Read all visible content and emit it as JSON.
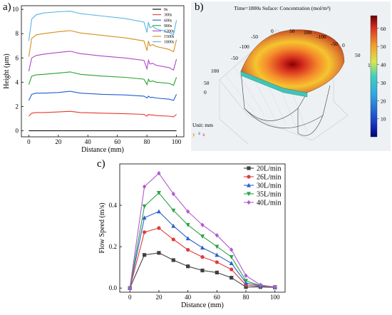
{
  "panels": {
    "a": "a)",
    "b": "b)",
    "c": "c)"
  },
  "chart_data": [
    {
      "type": "line",
      "panel": "a",
      "xlabel": "Distance (mm)",
      "ylabel": "Height (μm)",
      "xlim": [
        -5,
        105
      ],
      "ylim": [
        -0.5,
        10.3
      ],
      "xticks": [
        0,
        20,
        40,
        60,
        80,
        100
      ],
      "yticks": [
        0,
        2,
        4,
        6,
        8,
        10
      ],
      "legend_position": "top-right",
      "x": [
        0,
        2,
        5,
        10,
        20,
        28,
        35,
        50,
        65,
        78,
        80,
        81,
        82,
        84,
        86,
        95,
        98,
        100
      ],
      "series": [
        {
          "name": "0s",
          "color": "#000000",
          "values": [
            0,
            0,
            0,
            0,
            0,
            0,
            0,
            0,
            0,
            0,
            0,
            0,
            0,
            0,
            0,
            0,
            0,
            0
          ]
        },
        {
          "name": "300s",
          "color": "#e8392b",
          "values": [
            1.2,
            1.45,
            1.5,
            1.5,
            1.55,
            1.6,
            1.5,
            1.45,
            1.4,
            1.35,
            1.2,
            1.35,
            1.3,
            1.3,
            1.25,
            1.2,
            1.15,
            1.35
          ]
        },
        {
          "name": "600s",
          "color": "#1f5fd0",
          "values": [
            2.5,
            3.0,
            3.1,
            3.1,
            3.15,
            3.25,
            3.1,
            3.0,
            2.95,
            2.85,
            2.7,
            2.85,
            2.75,
            2.75,
            2.7,
            2.6,
            2.5,
            3.0
          ]
        },
        {
          "name": "900s",
          "color": "#2ca02c",
          "values": [
            3.8,
            4.5,
            4.6,
            4.65,
            4.75,
            4.85,
            4.65,
            4.5,
            4.4,
            4.25,
            3.8,
            4.25,
            4.05,
            4.1,
            4.0,
            3.9,
            3.75,
            4.4
          ]
        },
        {
          "name": "1200s",
          "color": "#b044c8",
          "values": [
            4.9,
            6.0,
            6.2,
            6.3,
            6.45,
            6.55,
            6.35,
            6.15,
            6.0,
            5.8,
            5.1,
            5.8,
            5.5,
            5.55,
            5.4,
            5.2,
            5.0,
            5.9
          ]
        },
        {
          "name": "1500s",
          "color": "#d4901a",
          "values": [
            6.1,
            7.6,
            7.9,
            8.0,
            8.15,
            8.25,
            8.05,
            7.85,
            7.65,
            7.4,
            6.6,
            7.4,
            7.0,
            7.1,
            6.95,
            6.7,
            6.5,
            7.5
          ]
        },
        {
          "name": "1800s",
          "color": "#5ab4e6",
          "values": [
            7.4,
            9.2,
            9.55,
            9.7,
            9.8,
            9.85,
            9.65,
            9.45,
            9.25,
            8.95,
            8.1,
            8.95,
            8.5,
            8.6,
            8.4,
            8.1,
            7.9,
            9.1
          ]
        }
      ]
    },
    {
      "type": "other",
      "panel": "b",
      "title": "Time=1800s Suface: Concentration (mol/m³)",
      "unit_label": "Unit: mm",
      "colorbar_min": 0,
      "colorbar_max": 67,
      "colorbar_ticks": [
        10,
        20,
        30,
        40,
        50,
        60
      ],
      "axis_ticks": [
        "100",
        "50",
        "0",
        "-50",
        "-100",
        "-50",
        "0",
        "50",
        "100",
        "-100",
        "-50",
        "0",
        "50",
        "100"
      ],
      "triad": {
        "y": "y",
        "z": "z",
        "x": "x"
      }
    },
    {
      "type": "line",
      "panel": "c",
      "xlabel": "Distance (mm)",
      "ylabel": "Flow Speed (m/s)",
      "xlim": [
        -7,
        107
      ],
      "ylim": [
        -0.02,
        0.6
      ],
      "xticks": [
        0,
        20,
        40,
        60,
        80,
        100
      ],
      "yticks": [
        0.0,
        0.2,
        0.4
      ],
      "legend_position": "top-right",
      "x": [
        0,
        10,
        20,
        30,
        40,
        50,
        60,
        70,
        80,
        90,
        100
      ],
      "series": [
        {
          "name": "20L/min",
          "color": "#404040",
          "marker": "square",
          "values": [
            0,
            0.16,
            0.17,
            0.135,
            0.105,
            0.085,
            0.075,
            0.05,
            0.005,
            0.005,
            0.003
          ]
        },
        {
          "name": "26L/min",
          "color": "#e03c3c",
          "marker": "circle",
          "values": [
            0,
            0.27,
            0.29,
            0.235,
            0.185,
            0.15,
            0.125,
            0.09,
            0.015,
            0.008,
            0.004
          ]
        },
        {
          "name": "30L/min",
          "color": "#2a62c9",
          "marker": "triangle-up",
          "values": [
            0,
            0.34,
            0.37,
            0.3,
            0.24,
            0.195,
            0.16,
            0.12,
            0.025,
            0.01,
            0.005
          ]
        },
        {
          "name": "35L/min",
          "color": "#2ca24a",
          "marker": "triangle-down",
          "values": [
            0,
            0.395,
            0.46,
            0.375,
            0.305,
            0.25,
            0.2,
            0.15,
            0.035,
            0.012,
            0.005
          ]
        },
        {
          "name": "40L/min",
          "color": "#b05ad0",
          "marker": "diamond",
          "values": [
            0,
            0.49,
            0.555,
            0.455,
            0.37,
            0.305,
            0.255,
            0.185,
            0.06,
            0.015,
            0.005
          ]
        }
      ]
    }
  ]
}
